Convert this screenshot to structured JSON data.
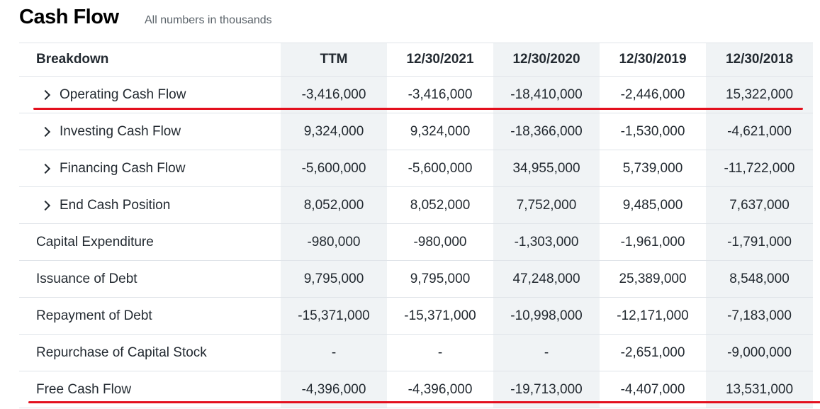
{
  "header": {
    "title": "Cash Flow",
    "subtitle": "All numbers in thousands"
  },
  "table": {
    "columns": [
      "Breakdown",
      "TTM",
      "12/30/2021",
      "12/30/2020",
      "12/30/2019",
      "12/30/2018"
    ],
    "rows": [
      {
        "label": "Operating Cash Flow",
        "expandable": true,
        "values": [
          "-3,416,000",
          "-3,416,000",
          "-18,410,000",
          "-2,446,000",
          "15,322,000"
        ]
      },
      {
        "label": "Investing Cash Flow",
        "expandable": true,
        "values": [
          "9,324,000",
          "9,324,000",
          "-18,366,000",
          "-1,530,000",
          "-4,621,000"
        ]
      },
      {
        "label": "Financing Cash Flow",
        "expandable": true,
        "values": [
          "-5,600,000",
          "-5,600,000",
          "34,955,000",
          "5,739,000",
          "-11,722,000"
        ]
      },
      {
        "label": "End Cash Position",
        "expandable": true,
        "values": [
          "8,052,000",
          "8,052,000",
          "7,752,000",
          "9,485,000",
          "7,637,000"
        ]
      },
      {
        "label": "Capital Expenditure",
        "expandable": false,
        "values": [
          "-980,000",
          "-980,000",
          "-1,303,000",
          "-1,961,000",
          "-1,791,000"
        ]
      },
      {
        "label": "Issuance of Debt",
        "expandable": false,
        "values": [
          "9,795,000",
          "9,795,000",
          "47,248,000",
          "25,389,000",
          "8,548,000"
        ]
      },
      {
        "label": "Repayment of Debt",
        "expandable": false,
        "values": [
          "-15,371,000",
          "-15,371,000",
          "-10,998,000",
          "-12,171,000",
          "-7,183,000"
        ]
      },
      {
        "label": "Repurchase of Capital Stock",
        "expandable": false,
        "values": [
          "-",
          "-",
          "-",
          "-2,651,000",
          "-9,000,000"
        ]
      },
      {
        "label": "Free Cash Flow",
        "expandable": false,
        "values": [
          "-4,396,000",
          "-4,396,000",
          "-19,713,000",
          "-4,407,000",
          "13,531,000"
        ]
      }
    ]
  },
  "annotations": {
    "highlight_color": "#e3101e",
    "highlighted_rows": [
      "Operating Cash Flow",
      "Free Cash Flow"
    ]
  }
}
